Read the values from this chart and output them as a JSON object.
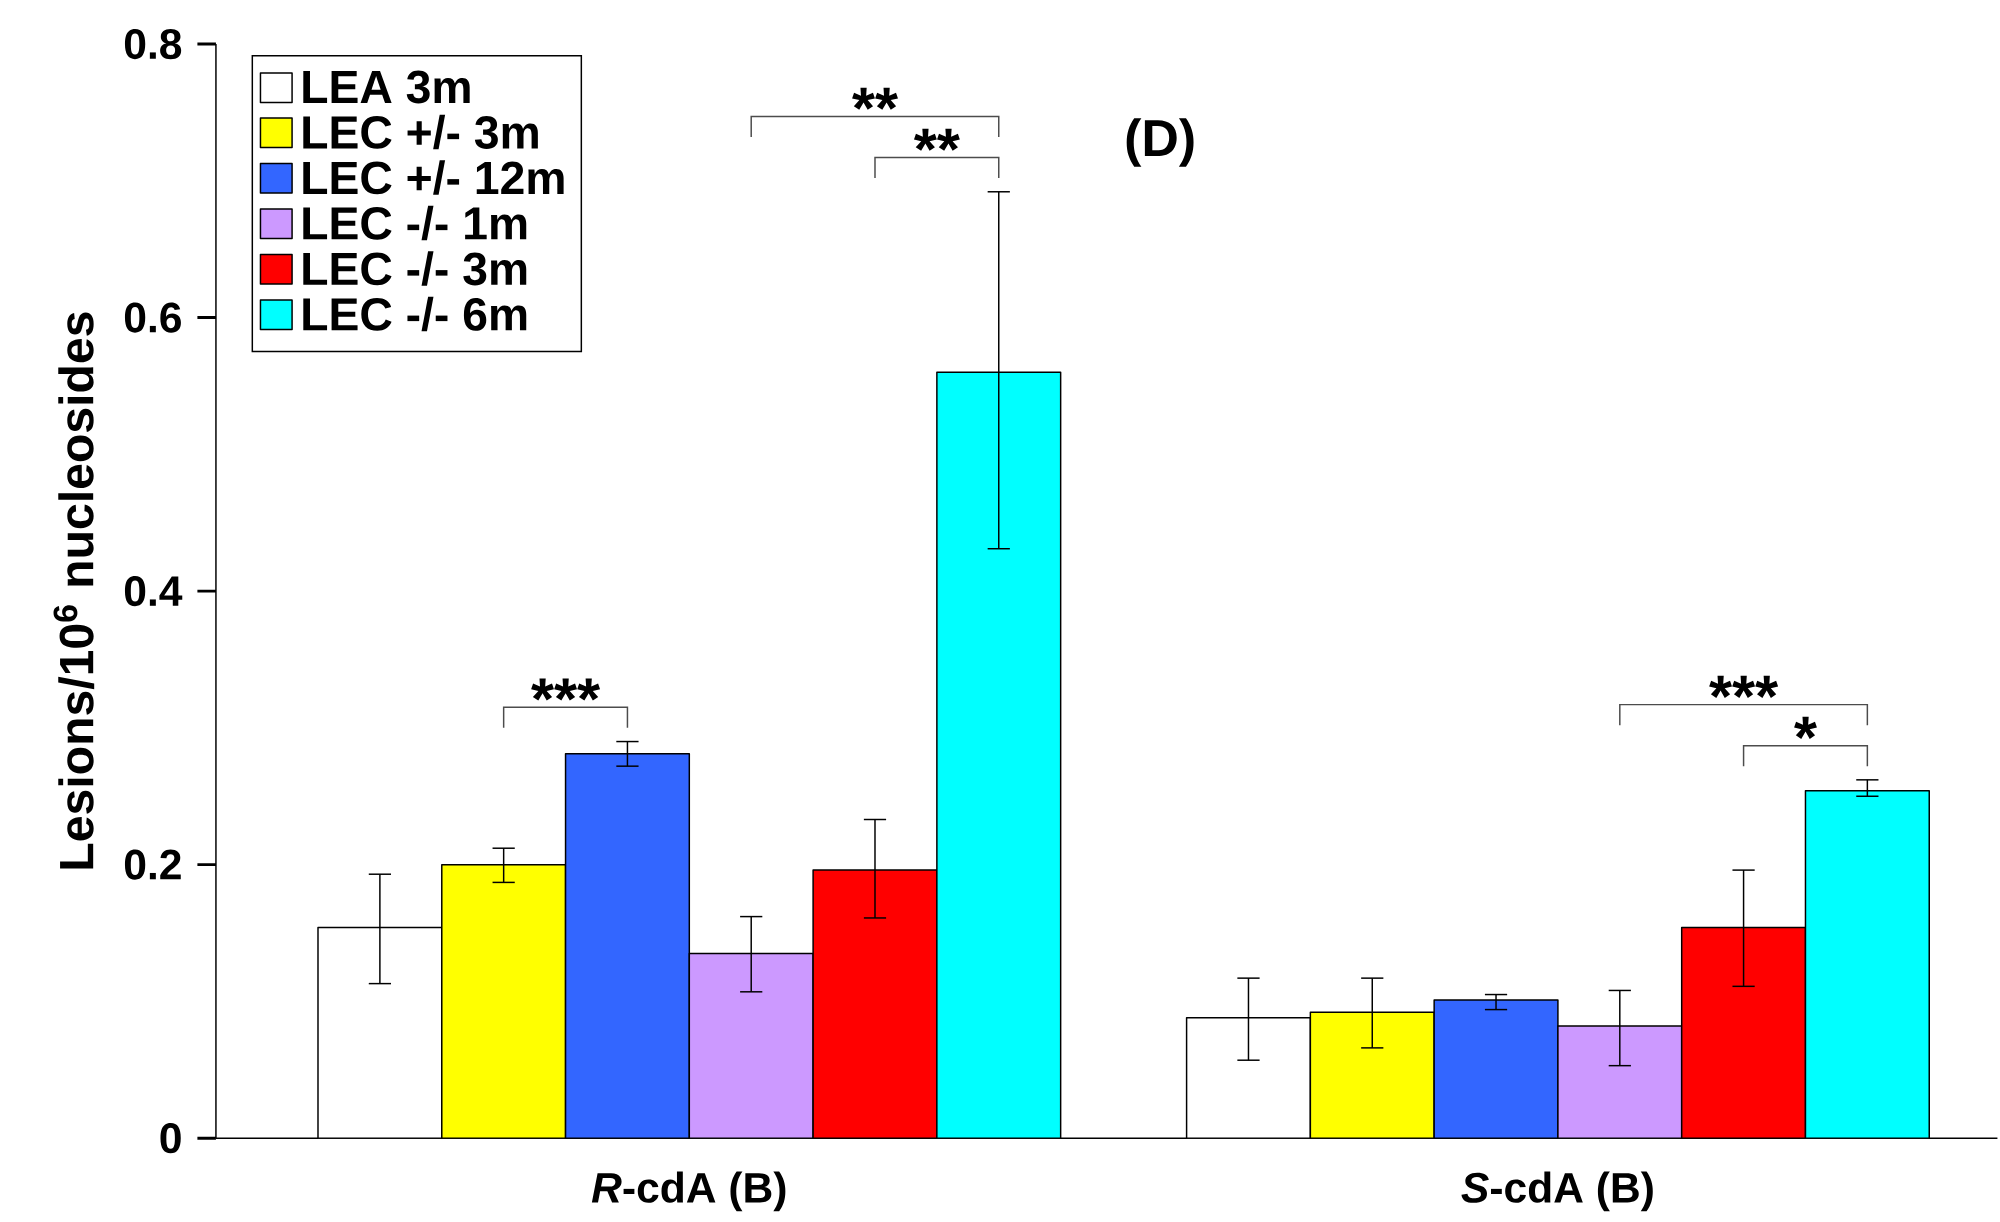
{
  "chart_data": {
    "type": "bar",
    "ylabel": "Lesions/10$^{6}$ nucleosides",
    "categories": [
      "*R*-cdA (B)",
      "*S*-cdA (B)"
    ],
    "series": [
      {
        "name": "LEA 3m",
        "color": "#ffffff",
        "values": [
          0.154,
          0.088
        ],
        "errors": [
          [
            0.113,
            0.193
          ],
          [
            0.057,
            0.117
          ]
        ]
      },
      {
        "name": "LEC +/- 3m",
        "color": "#ffff00",
        "values": [
          0.2,
          0.092
        ],
        "errors": [
          [
            0.187,
            0.212
          ],
          [
            0.066,
            0.117
          ]
        ]
      },
      {
        "name": "LEC +/- 12m",
        "color": "#3366ff",
        "values": [
          0.281,
          0.101
        ],
        "errors": [
          [
            0.272,
            0.29
          ],
          [
            0.094,
            0.105
          ]
        ]
      },
      {
        "name": "LEC -/- 1m",
        "color": "#cc99ff",
        "values": [
          0.135,
          0.082
        ],
        "errors": [
          [
            0.107,
            0.162
          ],
          [
            0.053,
            0.108
          ]
        ]
      },
      {
        "name": "LEC -/- 3m",
        "color": "#ff0000",
        "values": [
          0.196,
          0.154
        ],
        "errors": [
          [
            0.161,
            0.233
          ],
          [
            0.111,
            0.196
          ]
        ]
      },
      {
        "name": "LEC -/- 6m",
        "color": "#00ffff",
        "values": [
          0.56,
          0.254
        ],
        "errors": [
          [
            0.431,
            0.692
          ],
          [
            0.25,
            0.262
          ]
        ]
      }
    ],
    "ylim": [
      0,
      0.8
    ],
    "yticks": [
      0,
      0.2,
      0.4,
      0.6,
      0.8
    ],
    "legend": "top left",
    "annotations": [
      "(D)",
      "***",
      "**",
      "**",
      "***",
      "*"
    ]
  }
}
